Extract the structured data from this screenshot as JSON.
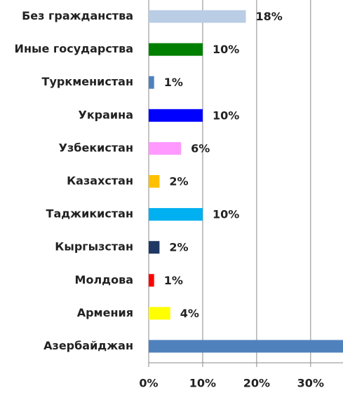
{
  "chart_data": {
    "type": "hbar",
    "categories": [
      "Без гражданства",
      "Иные государства",
      "Туркменистан",
      "Украина",
      "Узбекистан",
      "Казахстан",
      "Таджикистан",
      "Кыргызстан",
      "Молдова",
      "Армения",
      "Азербайджан"
    ],
    "values": [
      18,
      10,
      1,
      10,
      6,
      2,
      10,
      2,
      1,
      4,
      36
    ],
    "value_labels": [
      "18%",
      "10%",
      "1%",
      "10%",
      "6%",
      "2%",
      "10%",
      "2%",
      "1%",
      "4%",
      null
    ],
    "colors": [
      "#b9cde5",
      "#008000",
      "#4f81bd",
      "#0000ff",
      "#ff99ff",
      "#ffc000",
      "#00b0f0",
      "#1f3864",
      "#ff0000",
      "#ffff00",
      "#4f81bd"
    ],
    "xlim": [
      0,
      36
    ],
    "xticks": [
      {
        "value": 0,
        "label": "0%"
      },
      {
        "value": 10,
        "label": "10%"
      },
      {
        "value": 20,
        "label": "20%"
      },
      {
        "value": 30,
        "label": "30%"
      }
    ],
    "grid": true
  }
}
